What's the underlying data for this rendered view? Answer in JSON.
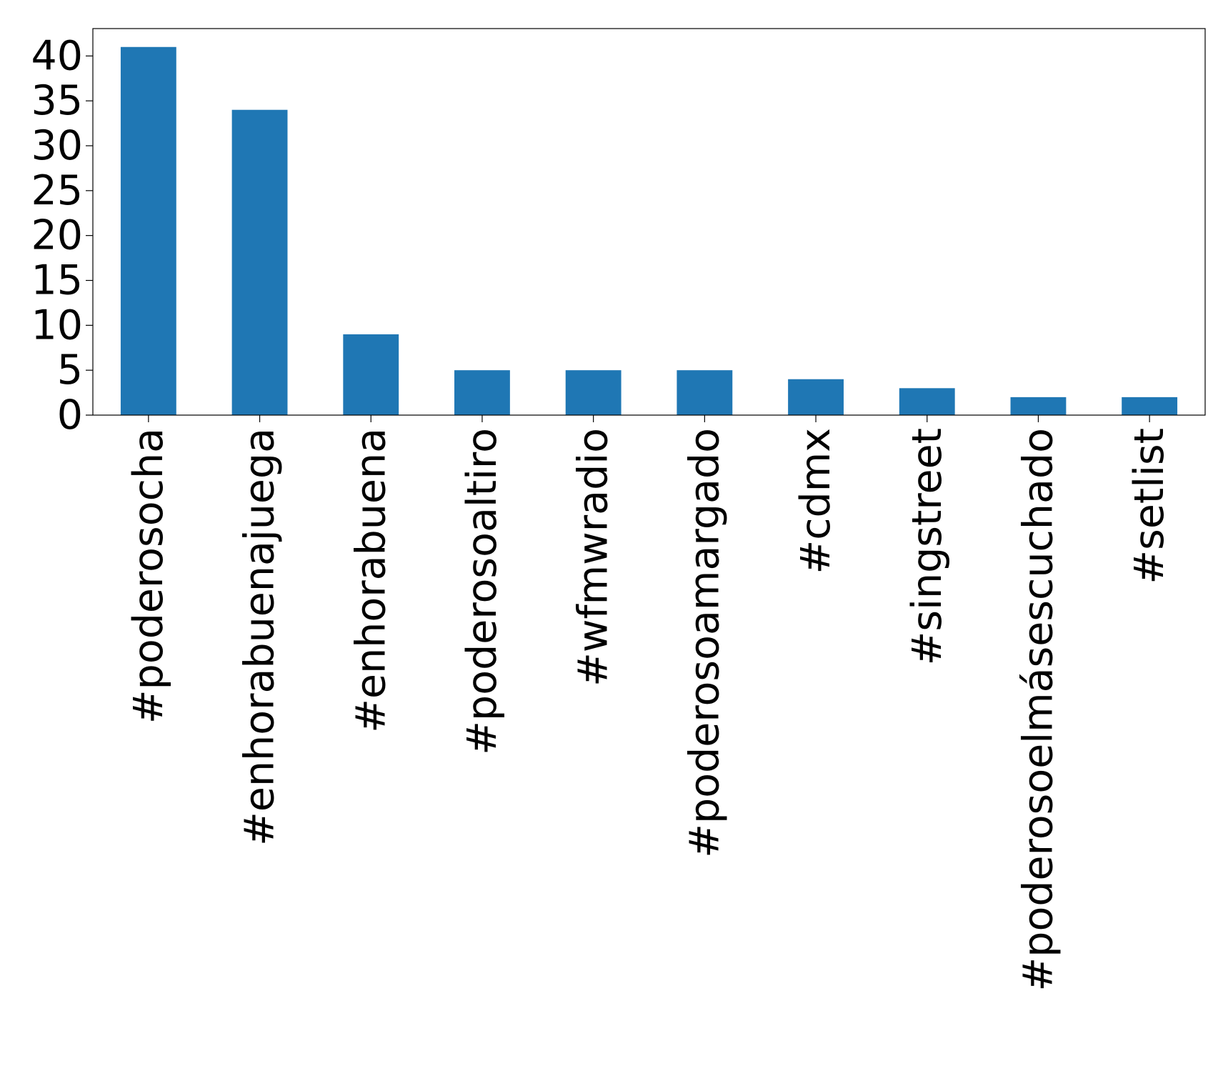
{
  "chart_data": {
    "type": "bar",
    "categories": [
      "#poderosocha",
      "#enhorabuenajuega",
      "#enhorabuena",
      "#poderosoaltiro",
      "#wfmwradio",
      "#poderosoamargado",
      "#cdmx",
      "#singstreet",
      "#poderosoelmásescuchado",
      "#setlist"
    ],
    "values": [
      41,
      34,
      9,
      5,
      5,
      5,
      4,
      3,
      2,
      2
    ],
    "color": "#1f77b4",
    "ylim": [
      0,
      43.05
    ],
    "yticks": [
      0,
      5,
      10,
      15,
      20,
      25,
      30,
      35,
      40
    ],
    "grid": false
  }
}
